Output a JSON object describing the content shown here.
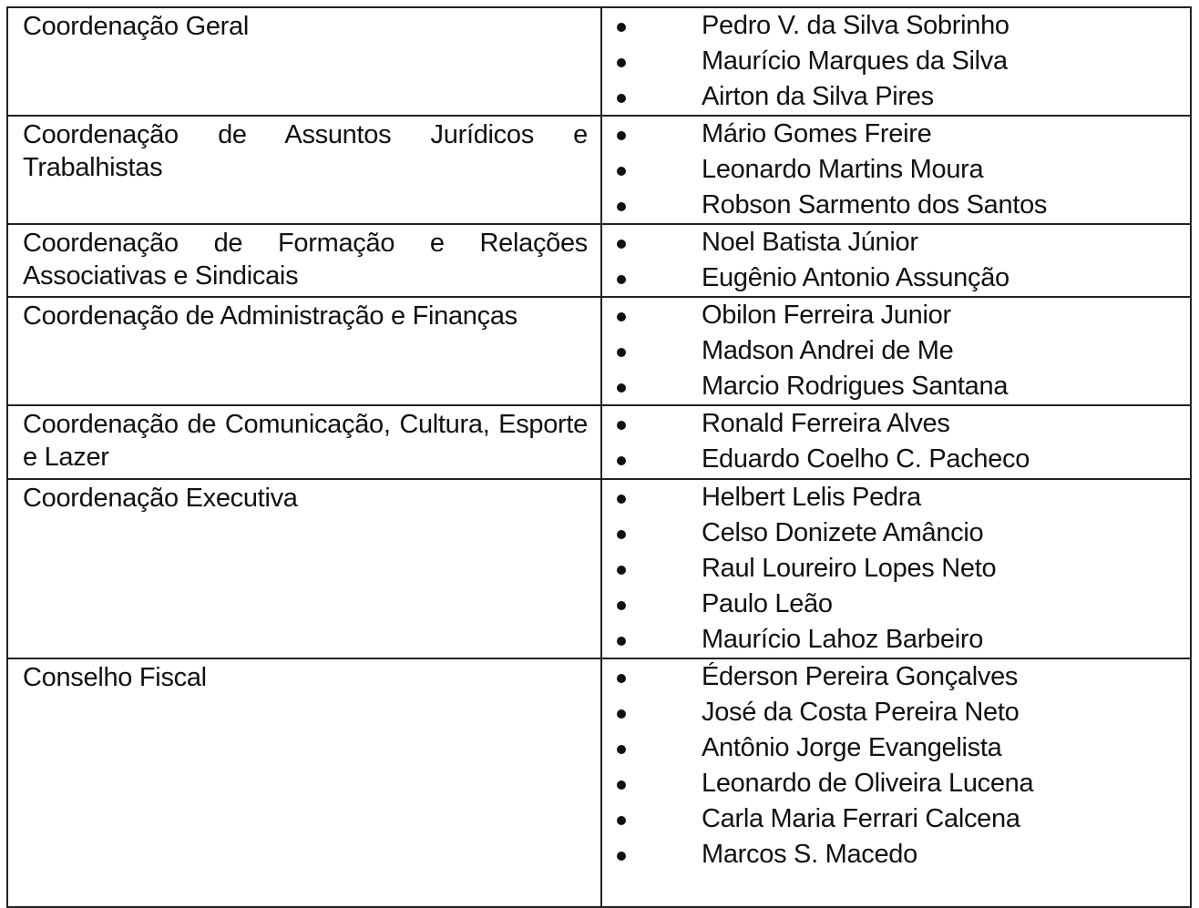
{
  "table": {
    "rows": [
      {
        "label": "Coordenação Geral",
        "members": [
          "Pedro V. da Silva Sobrinho",
          "Maurício Marques da Silva",
          "Airton da Silva Pires"
        ]
      },
      {
        "label": "Coordenação de Assuntos Jurídicos e Trabalhistas",
        "members": [
          "Mário Gomes Freire",
          "Leonardo Martins Moura",
          "Robson Sarmento dos Santos"
        ]
      },
      {
        "label": "Coordenação de Formação e Relações Associativas e Sindicais",
        "members": [
          "Noel Batista Júnior",
          "Eugênio Antonio Assunção"
        ]
      },
      {
        "label": "Coordenação de Administração e Finanças",
        "members": [
          "Obilon Ferreira Junior",
          "Madson Andrei de Me",
          "Marcio Rodrigues Santana"
        ]
      },
      {
        "label": "Coordenação de Comunicação, Cultura, Esporte e Lazer",
        "members": [
          "Ronald Ferreira Alves",
          "Eduardo Coelho C. Pacheco"
        ]
      },
      {
        "label": "Coordenação Executiva",
        "members": [
          "Helbert Lelis Pedra",
          "Celso Donizete Amâncio",
          "Raul Loureiro Lopes Neto",
          "Paulo Leão",
          "Maurício Lahoz Barbeiro"
        ]
      },
      {
        "label": "Conselho Fiscal",
        "members": [
          "Éderson Pereira Gonçalves",
          "José da Costa Pereira Neto",
          "Antônio Jorge Evangelista",
          "Leonardo de Oliveira Lucena",
          "Carla Maria Ferrari Calcena",
          "Marcos S. Macedo"
        ]
      }
    ]
  }
}
